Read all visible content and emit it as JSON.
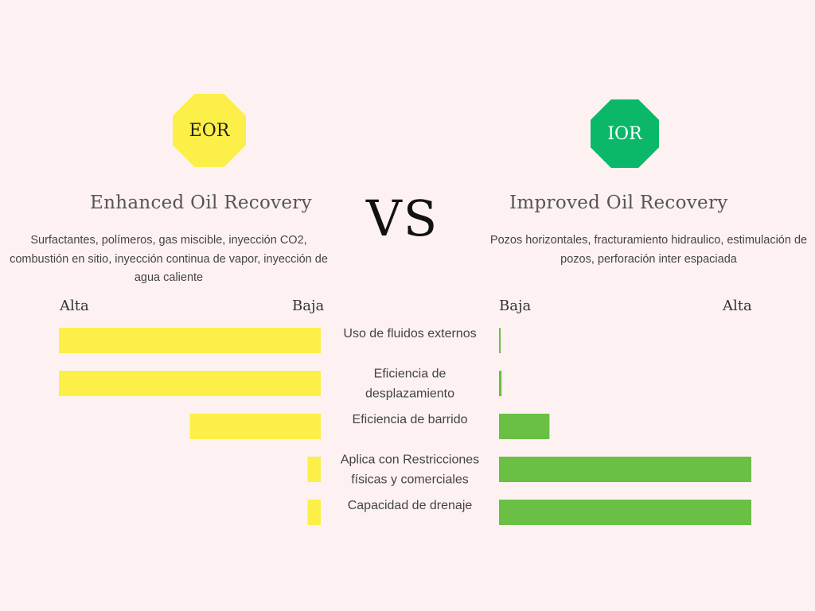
{
  "colors": {
    "eor": "#fbef48",
    "ior": "#0bb86a",
    "ior_bar": "#6abf45",
    "background": "#fdf2f1"
  },
  "eor": {
    "badge": "EOR",
    "heading": "Enhanced Oil Recovery",
    "description": "Surfactantes, polímeros, gas miscible, inyección CO2, combustión en sitio, inyección continua de vapor, inyección de agua caliente",
    "axis_left": "Alta",
    "axis_right": "Baja"
  },
  "vs": "VS",
  "ior": {
    "badge": "IOR",
    "heading": "Improved Oil Recovery",
    "description": "Pozos horizontales, fracturamiento hidraulico, estimulación de pozos, perforación inter espaciada",
    "axis_left": "Baja",
    "axis_right": "Alta"
  },
  "chart_data": {
    "type": "bar",
    "orientation": "horizontal-butterfly",
    "categories": [
      [
        "Uso de fluidos externos"
      ],
      [
        "Eficiencia de",
        "desplazamiento"
      ],
      [
        "Eficiencia de barrido"
      ],
      [
        "Aplica con Restricciones",
        "físicas y comerciales"
      ],
      [
        "Capacidad de drenaje"
      ]
    ],
    "series": [
      {
        "name": "EOR",
        "values": [
          100,
          100,
          50,
          5,
          5
        ]
      },
      {
        "name": "IOR",
        "values": [
          0.5,
          1,
          20,
          100,
          100
        ]
      }
    ],
    "scale": [
      0,
      100
    ]
  }
}
